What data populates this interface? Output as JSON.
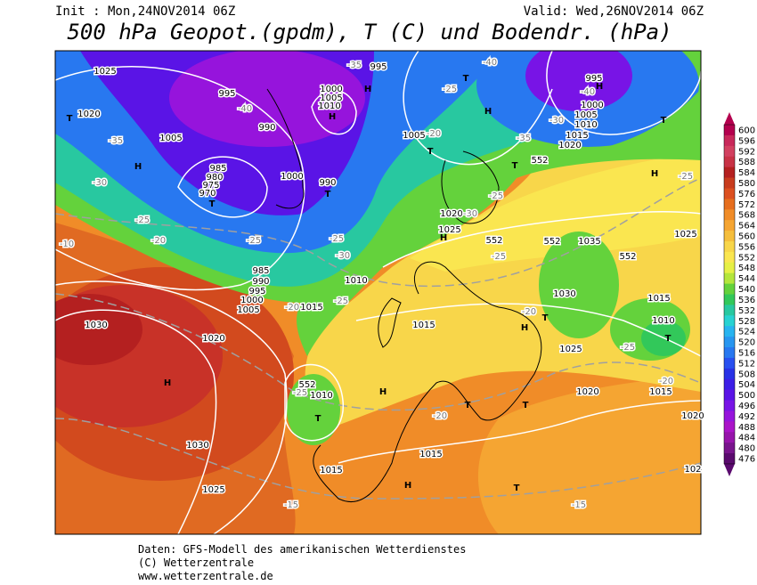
{
  "header": {
    "init": "Init : Mon,24NOV2014 06Z",
    "valid": "Valid: Wed,26NOV2014 06Z",
    "title": "500 hPa Geopot.(gpdm), T (C) und Bodendr. (hPa)"
  },
  "colorbar": {
    "levels": [
      600,
      596,
      592,
      588,
      584,
      580,
      576,
      572,
      568,
      564,
      560,
      556,
      552,
      548,
      544,
      540,
      536,
      532,
      528,
      524,
      520,
      516,
      512,
      508,
      504,
      500,
      496,
      492,
      488,
      484,
      480,
      476
    ],
    "colors": [
      "#b4004e",
      "#c8285a",
      "#d24060",
      "#c83246",
      "#b42020",
      "#c83c1e",
      "#dc5020",
      "#e66e1e",
      "#f08c28",
      "#f5a532",
      "#f5be3c",
      "#f8d64a",
      "#fae650",
      "#e6f046",
      "#b4e63c",
      "#64d23c",
      "#32c85a",
      "#28c8a0",
      "#28d2d2",
      "#28b4f0",
      "#2896f0",
      "#2878f0",
      "#2850f0",
      "#2832e6",
      "#3c1ee6",
      "#5a14e6",
      "#7814e6",
      "#9614dc",
      "#aa14c8",
      "#9614aa",
      "#78148c",
      "#5a0a6e"
    ]
  },
  "map_labels": [
    "1025",
    "1020",
    "T",
    "-35",
    "1005",
    "H",
    "-30",
    "995",
    "-40",
    "990",
    "985",
    "980",
    "975",
    "970",
    "T",
    "-25",
    "-20",
    "-10",
    "-25",
    "1000",
    "990",
    "T",
    "-35",
    "995",
    "1000",
    "1005",
    "1010",
    "H",
    "H",
    "1005",
    "T",
    "-20",
    "-25",
    "T",
    "H",
    "-40",
    "995",
    "-40",
    "1000",
    "1005",
    "1010",
    "1015",
    "1020",
    "H",
    "-30",
    "-35",
    "T",
    "552",
    "T",
    "H",
    "-25",
    "1020",
    "1025",
    "-30",
    "H",
    "552",
    "552",
    "1035",
    "552",
    "1025",
    "-25",
    "-25",
    "-30",
    "1010",
    "985",
    "990",
    "995",
    "1000",
    "1005",
    "-20",
    "1015",
    "-25",
    "1030",
    "1020",
    "H",
    "1015",
    "1030",
    "T",
    "H",
    "-20",
    "-25",
    "1025",
    "-25",
    "1015",
    "1010",
    "T",
    "1020",
    "1015",
    "-20",
    "552",
    "-25",
    "1010",
    "T",
    "H",
    "T",
    "-20",
    "T",
    "1030",
    "1015",
    "1015",
    "1025",
    "H",
    "T",
    "-15",
    "-15",
    "1020",
    "102"
  ],
  "footer": [
    "Daten: GFS-Modell des amerikanischen Wetterdienstes",
    "(C) Wetterzentrale",
    "www.wetterzentrale.de"
  ]
}
